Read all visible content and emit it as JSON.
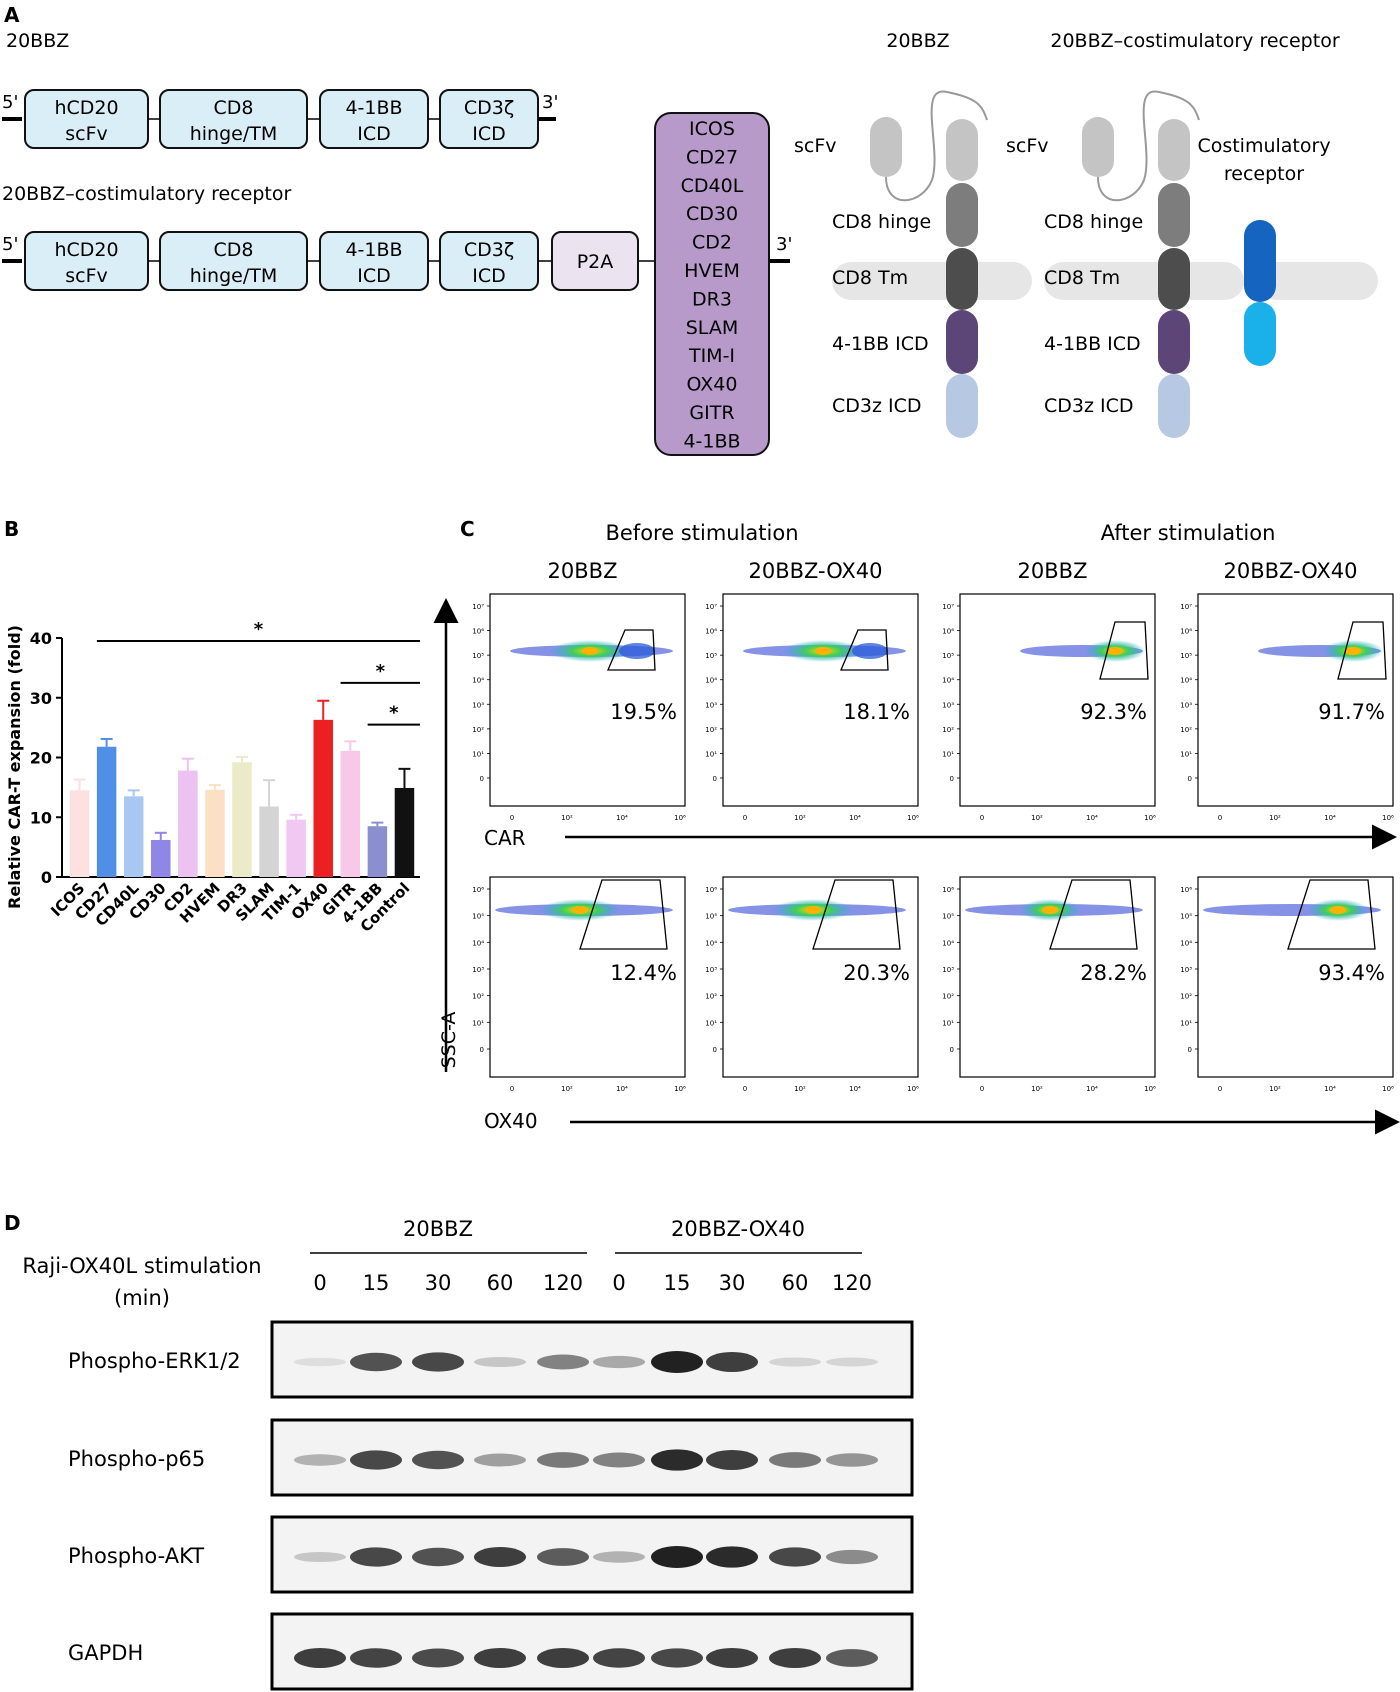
{
  "panel_a": {
    "letter": "A",
    "construct1": {
      "name": "20BBZ",
      "five_prime": "5'",
      "three_prime": "3'",
      "boxes": [
        [
          "hCD20",
          "scFv"
        ],
        [
          "CD8",
          "hinge/TM"
        ],
        [
          "4-1BB",
          "ICD"
        ],
        [
          "CD3ζ",
          "ICD"
        ]
      ]
    },
    "construct2": {
      "name": "20BBZ–costimulatory receptor",
      "five_prime": "5'",
      "three_prime": "3'",
      "boxes": [
        [
          "hCD20",
          "scFv"
        ],
        [
          "CD8",
          "hinge/TM"
        ],
        [
          "4-1BB",
          "ICD"
        ],
        [
          "CD3ζ",
          "ICD"
        ]
      ],
      "p2a": "P2A",
      "receptor_list": [
        "ICOS",
        "CD27",
        "CD40L",
        "CD30",
        "CD2",
        "HVEM",
        "DR3",
        "SLAM",
        "TIM-I",
        "OX40",
        "GITR",
        "4-1BB"
      ]
    },
    "schematic1": {
      "title": "20BBZ",
      "labels": [
        "scFv",
        "CD8 hinge",
        "CD8 Tm",
        "4-1BB ICD",
        "CD3z ICD"
      ]
    },
    "schematic2": {
      "title": "20BBZ–costimulatory receptor",
      "labels": [
        "scFv",
        "CD8 hinge",
        "CD8 Tm",
        "4-1BB ICD",
        "CD3z ICD"
      ],
      "receptor_label": [
        "Costimulatory",
        "receptor"
      ]
    },
    "colors": {
      "box_fill": "#d9eef6",
      "p2a_fill": "#ece3f0",
      "list_fill": "#b79ac9",
      "scfv": "#c4c4c4",
      "hinge": "#7d7d7d",
      "tm": "#4d4d4d",
      "bb": "#5c4577",
      "cd3z": "#b7c8e3",
      "membrane": "#e6e6e6",
      "receptor_top": "#1565c0",
      "receptor_bottom": "#1ab0ea"
    }
  },
  "panel_b": {
    "letter": "B",
    "chart_data": {
      "type": "bar",
      "ylabel": "Relative CAR-T expansion (fold)",
      "ylim": [
        0,
        40
      ],
      "yticks": [
        "0",
        "10",
        "20",
        "30",
        "40"
      ],
      "categories": [
        "ICOS",
        "CD27",
        "CD40L",
        "CD30",
        "CD2",
        "HVEM",
        "DR3",
        "SLAM",
        "TIM-1",
        "OX40",
        "GITR",
        "4-1BB",
        "Control"
      ],
      "values": [
        14.5,
        21.8,
        13.5,
        6.2,
        17.8,
        14.6,
        19.2,
        11.8,
        9.6,
        26.3,
        21.1,
        8.5,
        14.9
      ],
      "errors": [
        1.8,
        1.3,
        1.0,
        1.2,
        2.0,
        0.8,
        0.9,
        4.4,
        0.8,
        3.2,
        1.6,
        0.6,
        3.2
      ],
      "colors": [
        "#fde0e0",
        "#4f8fe6",
        "#a8c8f2",
        "#8f86e8",
        "#ebc2f0",
        "#fbe0c6",
        "#ecebc9",
        "#d4d4d4",
        "#f0c8f2",
        "#ec2020",
        "#f8c8e8",
        "#8a90cf",
        "#111111"
      ],
      "significance": [
        {
          "label": "*",
          "from": "CD27",
          "to": "Control",
          "y": 39.5
        },
        {
          "label": "*",
          "from": "GITR",
          "to": "Control",
          "y": 32.5
        },
        {
          "label": "*",
          "from": "4-1BB",
          "to": "Control",
          "y": 25.5
        }
      ]
    }
  },
  "panel_c": {
    "letter": "C",
    "header_before": "Before stimulation",
    "header_after": "After stimulation",
    "columns": [
      "20BBZ",
      "20BBZ-OX40",
      "20BBZ",
      "20BBZ-OX40"
    ],
    "y_axis_label": "SSC-A",
    "row1_axis_label": "CAR",
    "row2_axis_label": "OX40",
    "ytick_labels": [
      "10⁷",
      "10⁶",
      "10⁵",
      "10⁴",
      "10³",
      "10²",
      "10¹",
      "0"
    ],
    "ytick_labels_row2": [
      "10⁶",
      "10⁵",
      "10⁴",
      "10³",
      "10²",
      "10¹",
      "0"
    ],
    "xtick_labels": [
      "0",
      "10²",
      "10⁴",
      "10⁶"
    ],
    "row1_percents": [
      "19.5%",
      "18.1%",
      "92.3%",
      "91.7%"
    ],
    "row2_percents": [
      "12.4%",
      "20.3%",
      "28.2%",
      "93.4%"
    ]
  },
  "panel_d": {
    "letter": "D",
    "group1": "20BBZ",
    "group2": "20BBZ-OX40",
    "stim_label_1": "Raji-OX40L stimulation",
    "stim_label_2": "(min)",
    "timepoints": [
      "0",
      "15",
      "30",
      "60",
      "120",
      "0",
      "15",
      "30",
      "60",
      "120"
    ],
    "blots": [
      {
        "label": "Phospho-ERK1/2",
        "intensity": [
          0.03,
          0.75,
          0.8,
          0.15,
          0.5,
          0.3,
          1.0,
          0.85,
          0.08,
          0.07
        ]
      },
      {
        "label": "Phospho-p65",
        "intensity": [
          0.25,
          0.8,
          0.75,
          0.35,
          0.55,
          0.5,
          0.95,
          0.85,
          0.55,
          0.4
        ]
      },
      {
        "label": "Phospho-AKT",
        "intensity": [
          0.15,
          0.8,
          0.75,
          0.85,
          0.7,
          0.25,
          1.0,
          0.95,
          0.8,
          0.45
        ]
      },
      {
        "label": "GAPDH",
        "intensity": [
          0.85,
          0.82,
          0.78,
          0.85,
          0.85,
          0.82,
          0.8,
          0.85,
          0.85,
          0.7
        ]
      }
    ]
  }
}
